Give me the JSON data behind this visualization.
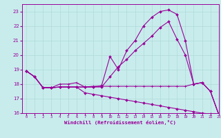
{
  "background_color": "#c8ecec",
  "grid_color": "#b0d8d8",
  "line_color": "#990099",
  "xlim": [
    -0.5,
    23
  ],
  "ylim": [
    16,
    23.5
  ],
  "xticks": [
    0,
    1,
    2,
    3,
    4,
    5,
    6,
    7,
    8,
    9,
    10,
    11,
    12,
    13,
    14,
    15,
    16,
    17,
    18,
    19,
    20,
    21,
    22,
    23
  ],
  "yticks": [
    16,
    17,
    18,
    19,
    20,
    21,
    22,
    23
  ],
  "xlabel": "Windchill (Refroidissement éolien,°C)",
  "line1_x": [
    0,
    1,
    2,
    3,
    4,
    5,
    6,
    7,
    8,
    9,
    10,
    11,
    12,
    13,
    14,
    15,
    16,
    17,
    18,
    19,
    20,
    21,
    22,
    23
  ],
  "line1_y": [
    18.9,
    18.5,
    17.75,
    17.75,
    17.8,
    17.8,
    17.8,
    17.8,
    17.8,
    17.9,
    19.9,
    19.0,
    20.3,
    21.0,
    22.0,
    22.6,
    23.0,
    23.1,
    22.8,
    21.0,
    18.0,
    18.1,
    17.5,
    15.9
  ],
  "line2_x": [
    0,
    1,
    2,
    3,
    4,
    5,
    6,
    7,
    8,
    9,
    10,
    11,
    12,
    13,
    14,
    15,
    16,
    17,
    18,
    19,
    20,
    21,
    22,
    23
  ],
  "line2_y": [
    18.9,
    18.5,
    17.75,
    17.75,
    17.8,
    17.8,
    17.8,
    17.8,
    17.8,
    17.8,
    18.5,
    19.2,
    19.7,
    20.3,
    20.8,
    21.3,
    21.9,
    22.3,
    21.1,
    20.0,
    18.0,
    18.1,
    17.5,
    15.9
  ],
  "line3_x": [
    0,
    1,
    2,
    3,
    4,
    5,
    6,
    7,
    8,
    9,
    10,
    11,
    12,
    13,
    14,
    15,
    16,
    17,
    18,
    19,
    20,
    21,
    22,
    23
  ],
  "line3_y": [
    18.9,
    18.5,
    17.75,
    17.75,
    18.0,
    18.0,
    18.1,
    17.8,
    17.85,
    17.85,
    17.85,
    17.85,
    17.85,
    17.85,
    17.85,
    17.85,
    17.85,
    17.85,
    17.85,
    17.85,
    18.0,
    18.1,
    17.5,
    15.9
  ],
  "line4_x": [
    0,
    1,
    2,
    3,
    4,
    5,
    6,
    7,
    8,
    9,
    10,
    11,
    12,
    13,
    14,
    15,
    16,
    17,
    18,
    19,
    20,
    21,
    22,
    23
  ],
  "line4_y": [
    18.9,
    18.5,
    17.75,
    17.75,
    17.8,
    17.8,
    17.8,
    17.4,
    17.3,
    17.2,
    17.1,
    17.0,
    16.9,
    16.8,
    16.7,
    16.6,
    16.5,
    16.4,
    16.3,
    16.2,
    16.1,
    16.0,
    15.95,
    15.9
  ]
}
